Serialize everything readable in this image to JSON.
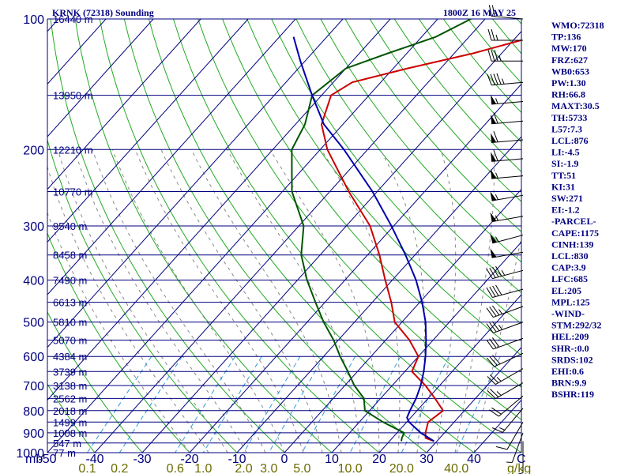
{
  "chart_data": {
    "type": "line",
    "subtype": "skew-t log-p sounding",
    "title": "KRNK (72318) Sounding",
    "valid_time": "1800Z 16 MAY 25",
    "pressure_axis": {
      "ticks": [
        100,
        200,
        300,
        400,
        500,
        600,
        700,
        800,
        900,
        1000
      ],
      "range": [
        100,
        1000
      ],
      "unit_label": "mb",
      "scale": "log"
    },
    "temperature_axis": {
      "ticks": [
        -50,
        -40,
        -30,
        -20,
        -10,
        0,
        10,
        20,
        30,
        40
      ],
      "range": [
        -50,
        50
      ],
      "end_label": "C"
    },
    "mixing_ratio_labels": [
      "0.1",
      "0.2",
      "0.6",
      "1.0",
      "2.0",
      "3.0",
      "5.0",
      "10.0",
      "20.0",
      "40.0"
    ],
    "mixing_ratio_values": [
      0.1,
      0.2,
      0.6,
      1.0,
      2.0,
      3.0,
      5.0,
      10.0,
      20.0,
      40.0
    ],
    "mixing_ratio_unit": "g/kg",
    "heights": [
      {
        "p": 100,
        "label": "16440 m"
      },
      {
        "p": 150,
        "label": "13950 m"
      },
      {
        "p": 200,
        "label": "12210 m"
      },
      {
        "p": 250,
        "label": "10770 m"
      },
      {
        "p": 300,
        "label": "9540 m"
      },
      {
        "p": 350,
        "label": "8458 m"
      },
      {
        "p": 400,
        "label": "7490 m"
      },
      {
        "p": 450,
        "label": "6613 m"
      },
      {
        "p": 500,
        "label": "5810 m"
      },
      {
        "p": 550,
        "label": "5070 m"
      },
      {
        "p": 600,
        "label": "4384 m"
      },
      {
        "p": 650,
        "label": "3739 m"
      },
      {
        "p": 700,
        "label": "3138 m"
      },
      {
        "p": 750,
        "label": "2562 m"
      },
      {
        "p": 800,
        "label": "2018 m"
      },
      {
        "p": 850,
        "label": "1499 m"
      },
      {
        "p": 900,
        "label": "1008 m"
      },
      {
        "p": 950,
        "label": "547 m"
      },
      {
        "p": 1000,
        "label": "77 m"
      }
    ],
    "series": [
      {
        "name": "",
        "role": "temperature",
        "color": "#cc0000",
        "points": [
          [
            941,
            29.4
          ],
          [
            925,
            27
          ],
          [
            900,
            26
          ],
          [
            850,
            24.5
          ],
          [
            800,
            25.5
          ],
          [
            750,
            21.5
          ],
          [
            700,
            17
          ],
          [
            650,
            11.5
          ],
          [
            600,
            10
          ],
          [
            550,
            5
          ],
          [
            500,
            -1.5
          ],
          [
            450,
            -6
          ],
          [
            400,
            -11.5
          ],
          [
            350,
            -17.5
          ],
          [
            300,
            -25
          ],
          [
            250,
            -36
          ],
          [
            200,
            -48.5
          ],
          [
            175,
            -54.5
          ],
          [
            150,
            -58
          ],
          [
            140,
            -56
          ],
          [
            130,
            -47
          ],
          [
            120,
            -36
          ],
          [
            100,
            -16
          ]
        ]
      },
      {
        "name": "",
        "role": "dewpoint",
        "color": "#005500",
        "points": [
          [
            941,
            22.5
          ],
          [
            925,
            22
          ],
          [
            900,
            21.5
          ],
          [
            850,
            15
          ],
          [
            800,
            9
          ],
          [
            750,
            6.5
          ],
          [
            700,
            2
          ],
          [
            650,
            -2
          ],
          [
            600,
            -6.5
          ],
          [
            550,
            -11
          ],
          [
            500,
            -16.5
          ],
          [
            450,
            -22
          ],
          [
            400,
            -28
          ],
          [
            350,
            -34
          ],
          [
            300,
            -39
          ],
          [
            250,
            -48
          ],
          [
            200,
            -56
          ],
          [
            175,
            -58
          ],
          [
            150,
            -62
          ],
          [
            130,
            -60
          ],
          [
            120,
            -54
          ],
          [
            110,
            -47
          ],
          [
            100,
            -43
          ]
        ]
      },
      {
        "name": "",
        "role": "parcel",
        "color": "#0000aa",
        "points": [
          [
            941,
            29.4
          ],
          [
            900,
            25
          ],
          [
            850,
            20.5
          ],
          [
            830,
            19.2
          ],
          [
            800,
            18.5
          ],
          [
            750,
            17.5
          ],
          [
            700,
            16
          ],
          [
            650,
            14
          ],
          [
            600,
            11.5
          ],
          [
            550,
            8.5
          ],
          [
            500,
            5
          ],
          [
            450,
            0.5
          ],
          [
            400,
            -5
          ],
          [
            350,
            -12
          ],
          [
            300,
            -20.5
          ],
          [
            250,
            -31
          ],
          [
            200,
            -45
          ],
          [
            175,
            -54
          ],
          [
            150,
            -62
          ],
          [
            125,
            -71
          ],
          [
            110,
            -77
          ]
        ]
      }
    ],
    "wind_barbs": [
      {
        "p": 100,
        "dir": 275,
        "kt": 20
      },
      {
        "p": 112,
        "dir": 270,
        "kt": 25
      },
      {
        "p": 125,
        "dir": 270,
        "kt": 35
      },
      {
        "p": 140,
        "dir": 265,
        "kt": 45
      },
      {
        "p": 155,
        "dir": 265,
        "kt": 55
      },
      {
        "p": 172,
        "dir": 265,
        "kt": 60
      },
      {
        "p": 190,
        "dir": 265,
        "kt": 60
      },
      {
        "p": 210,
        "dir": 265,
        "kt": 60
      },
      {
        "p": 230,
        "dir": 265,
        "kt": 55
      },
      {
        "p": 255,
        "dir": 260,
        "kt": 55
      },
      {
        "p": 285,
        "dir": 260,
        "kt": 55
      },
      {
        "p": 315,
        "dir": 255,
        "kt": 55
      },
      {
        "p": 345,
        "dir": 260,
        "kt": 50
      },
      {
        "p": 380,
        "dir": 255,
        "kt": 45
      },
      {
        "p": 420,
        "dir": 255,
        "kt": 40
      },
      {
        "p": 460,
        "dir": 250,
        "kt": 35
      },
      {
        "p": 500,
        "dir": 250,
        "kt": 35
      },
      {
        "p": 545,
        "dir": 250,
        "kt": 30
      },
      {
        "p": 590,
        "dir": 245,
        "kt": 30
      },
      {
        "p": 640,
        "dir": 240,
        "kt": 25
      },
      {
        "p": 690,
        "dir": 240,
        "kt": 25
      },
      {
        "p": 740,
        "dir": 230,
        "kt": 20
      },
      {
        "p": 790,
        "dir": 220,
        "kt": 15
      },
      {
        "p": 850,
        "dir": 210,
        "kt": 10
      },
      {
        "p": 900,
        "dir": 200,
        "kt": 5
      },
      {
        "p": 941,
        "dir": 180,
        "kt": 5
      }
    ],
    "indices": [
      "WMO:72318",
      "TP:136",
      "MW:170",
      "FRZ:627",
      "WB0:653",
      "PW:1.30",
      "RH:66.8",
      "MAXT:30.5",
      "TH:5733",
      "L57:7.3",
      "LCL:876",
      "LI:-4.5",
      "SI:-1.9",
      "TT:51",
      "KI:31",
      "SW:271",
      "EI:-1.2",
      "-PARCEL-",
      "CAPE:1175",
      "CINH:139",
      "LCL:830",
      "CAP:3.9",
      "LFC:685",
      "EL:205",
      "MPL:125",
      "-WIND-",
      "STM:292/32",
      "HEL:209",
      "SHR-:0.0",
      "SRDS:102",
      "EHI:0.6",
      "BRN:9.9",
      "BSHR:119"
    ]
  }
}
